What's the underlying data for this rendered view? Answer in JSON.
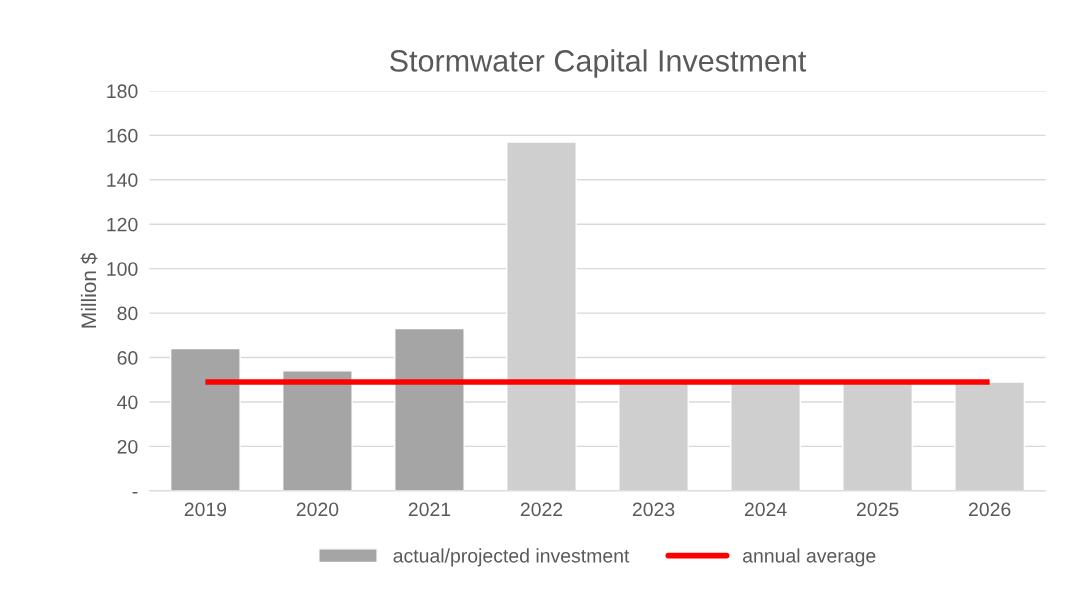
{
  "chart_data": {
    "type": "bar",
    "title": "Stormwater Capital Investment",
    "ylabel": "Million $",
    "categories": [
      "2019",
      "2020",
      "2021",
      "2022",
      "2023",
      "2024",
      "2025",
      "2026"
    ],
    "series": [
      {
        "name": "actual/projected investment",
        "color": "#a5a5a5",
        "colors": [
          "#a5a5a5",
          "#a5a5a5",
          "#a5a5a5",
          "#cfcfcf",
          "#cfcfcf",
          "#cfcfcf",
          "#cfcfcf",
          "#cfcfcf"
        ],
        "values": [
          64,
          54,
          73,
          157,
          49,
          49,
          49,
          49
        ]
      },
      {
        "name": "annual average",
        "type": "line",
        "color": "#ff0000",
        "values": [
          49,
          49,
          49,
          49,
          49,
          49,
          49,
          49
        ]
      }
    ],
    "ylim": [
      0,
      180
    ],
    "yticks": [
      {
        "value": 0,
        "label": "-"
      },
      20,
      40,
      60,
      80,
      100,
      120,
      140,
      160,
      180
    ],
    "grid": "y",
    "legend": "bottom"
  }
}
